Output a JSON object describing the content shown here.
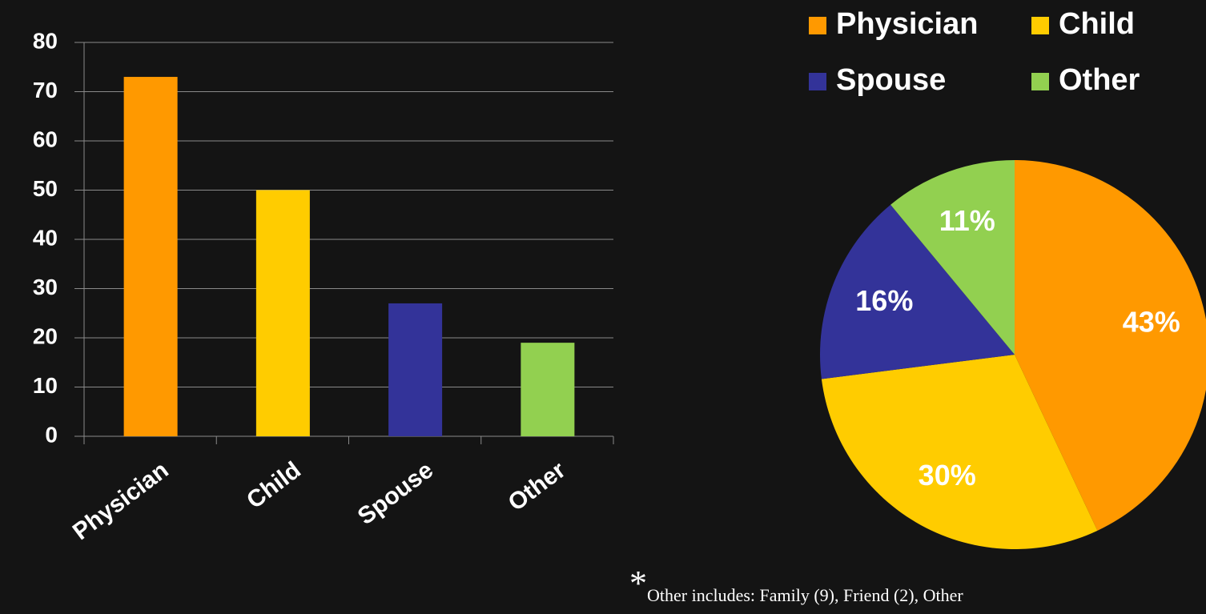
{
  "chart_data": [
    {
      "type": "bar",
      "categories": [
        "Physician",
        "Child",
        "Spouse",
        "Other"
      ],
      "values": [
        73,
        50,
        27,
        19
      ],
      "colors": [
        "#ff9900",
        "#ffcc00",
        "#333399",
        "#92d050"
      ],
      "ylim": [
        0,
        80
      ],
      "yticks": [
        0,
        10,
        20,
        30,
        40,
        50,
        60,
        70,
        80
      ],
      "grid": true
    },
    {
      "type": "pie",
      "categories": [
        "Physician",
        "Child",
        "Spouse",
        "Other"
      ],
      "values": [
        43,
        30,
        16,
        11
      ],
      "value_labels": [
        "43%",
        "30%",
        "16%",
        "11%"
      ],
      "colors": [
        "#ff9900",
        "#ffcc00",
        "#333399",
        "#92d050"
      ],
      "legend": "top"
    }
  ],
  "footnote": {
    "marker": "*",
    "text": "Other includes: Family (9), Friend (2), Other"
  }
}
